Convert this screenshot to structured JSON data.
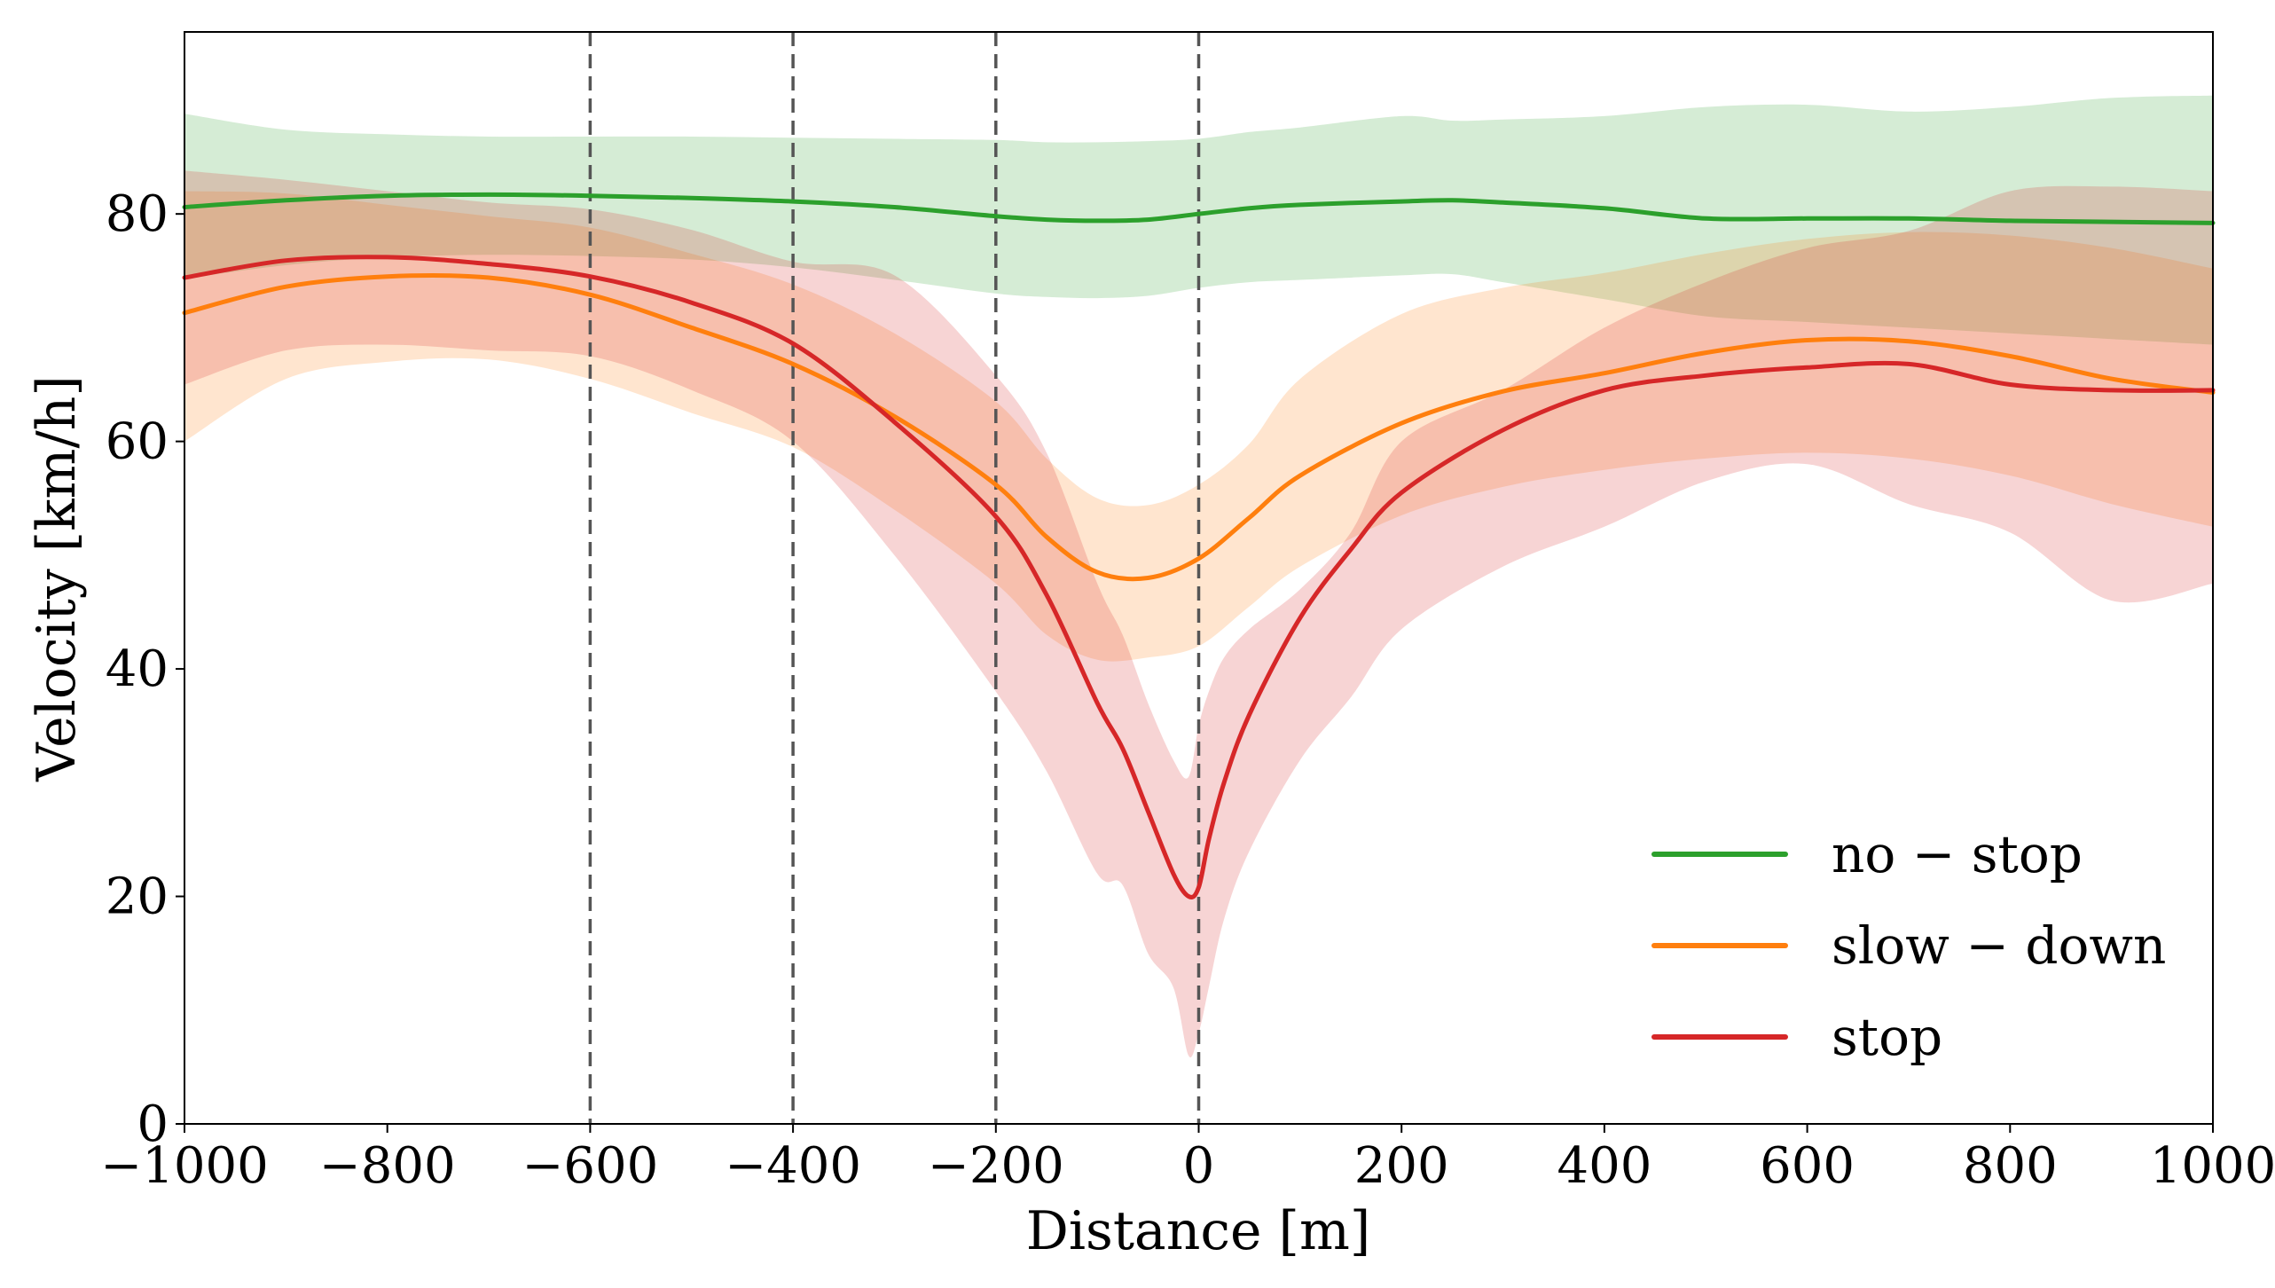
{
  "chart_data": {
    "type": "line",
    "title": "",
    "xlabel": "Distance [m]",
    "ylabel": "Velocity [km/h]",
    "xlim": [
      -1000,
      1000
    ],
    "ylim": [
      0,
      96
    ],
    "xticks": [
      -1000,
      -800,
      -600,
      -400,
      -200,
      0,
      200,
      400,
      600,
      800,
      1000
    ],
    "xtick_labels": [
      "−1000",
      "−800",
      "−600",
      "−400",
      "−200",
      "0",
      "200",
      "400",
      "600",
      "800",
      "1000"
    ],
    "yticks": [
      0,
      20,
      40,
      60,
      80
    ],
    "ytick_labels": [
      "0",
      "20",
      "40",
      "60",
      "80"
    ],
    "grid": false,
    "vlines": [
      -600,
      -400,
      -200,
      0
    ],
    "legend_position": "lower-right",
    "series": [
      {
        "name": "no − stop",
        "color": "#2ca02c",
        "band_color": "#2ca02c",
        "x": [
          -1000,
          -900,
          -800,
          -700,
          -600,
          -500,
          -400,
          -300,
          -200,
          -150,
          -100,
          -50,
          0,
          50,
          100,
          200,
          250,
          300,
          400,
          500,
          600,
          700,
          800,
          900,
          1000
        ],
        "y": [
          80.6,
          81.2,
          81.6,
          81.7,
          81.6,
          81.4,
          81.1,
          80.6,
          79.8,
          79.5,
          79.4,
          79.5,
          80.0,
          80.5,
          80.8,
          81.1,
          81.2,
          81.0,
          80.5,
          79.6,
          79.6,
          79.6,
          79.4,
          79.3,
          79.2
        ],
        "lower": [
          74.3,
          75.5,
          76.2,
          76.4,
          76.3,
          76.0,
          75.3,
          74.2,
          73.0,
          72.7,
          72.6,
          72.8,
          73.5,
          74.0,
          74.2,
          74.6,
          74.7,
          74.0,
          72.5,
          71.0,
          70.5,
          70.0,
          69.5,
          69.0,
          68.5
        ],
        "upper": [
          88.8,
          87.4,
          87.0,
          86.8,
          86.8,
          86.8,
          86.7,
          86.6,
          86.5,
          86.3,
          86.3,
          86.4,
          86.6,
          87.2,
          87.6,
          88.6,
          88.2,
          88.3,
          88.6,
          89.4,
          89.6,
          89.0,
          89.4,
          90.2,
          90.4
        ]
      },
      {
        "name": "slow − down",
        "color": "#ff7f0e",
        "band_color": "#ff7f0e",
        "x": [
          -1000,
          -900,
          -800,
          -700,
          -600,
          -500,
          -400,
          -300,
          -200,
          -150,
          -100,
          -50,
          0,
          50,
          100,
          200,
          300,
          400,
          500,
          600,
          700,
          800,
          900,
          1000
        ],
        "y": [
          71.3,
          73.6,
          74.5,
          74.4,
          72.9,
          70.0,
          66.8,
          62.2,
          56.2,
          51.6,
          48.5,
          48.0,
          49.7,
          53.3,
          57.0,
          61.6,
          64.4,
          66.0,
          67.8,
          68.9,
          68.8,
          67.5,
          65.5,
          64.3
        ],
        "lower": [
          60.0,
          65.5,
          67.0,
          67.2,
          65.5,
          62.5,
          59.5,
          54.0,
          47.5,
          43.0,
          40.8,
          41.0,
          42.0,
          45.5,
          49.0,
          53.5,
          56.0,
          57.5,
          58.5,
          59.0,
          58.5,
          57.0,
          54.5,
          52.5
        ],
        "upper": [
          82.0,
          81.8,
          80.8,
          79.8,
          78.8,
          76.5,
          73.8,
          69.5,
          63.5,
          58.5,
          55.0,
          54.4,
          56.2,
          59.8,
          65.5,
          71.2,
          73.5,
          74.8,
          76.5,
          77.8,
          78.4,
          78.1,
          77.0,
          75.2
        ]
      },
      {
        "name": "stop",
        "color": "#d62728",
        "band_color": "#d62728",
        "x": [
          -1000,
          -900,
          -800,
          -700,
          -600,
          -500,
          -400,
          -300,
          -200,
          -150,
          -100,
          -75,
          -50,
          -25,
          -10,
          0,
          10,
          25,
          50,
          100,
          150,
          200,
          300,
          400,
          500,
          600,
          700,
          800,
          900,
          1000
        ],
        "y": [
          74.4,
          75.9,
          76.2,
          75.6,
          74.5,
          72.2,
          68.6,
          61.7,
          53.4,
          46.5,
          37.0,
          33.0,
          27.5,
          22.0,
          20.0,
          20.8,
          25.0,
          30.0,
          36.0,
          44.5,
          50.5,
          55.5,
          61.0,
          64.5,
          65.8,
          66.5,
          66.8,
          65.0,
          64.5,
          64.5
        ],
        "lower": [
          65.0,
          68.0,
          68.5,
          68.0,
          67.5,
          64.5,
          60.0,
          50.0,
          38.0,
          31.0,
          22.0,
          21.0,
          15.0,
          12.0,
          6.0,
          8.0,
          12.0,
          18.0,
          24.0,
          32.0,
          37.5,
          43.5,
          49.0,
          52.5,
          56.5,
          58.0,
          54.5,
          52.0,
          46.0,
          47.5
        ],
        "upper": [
          83.8,
          83.0,
          82.0,
          81.0,
          80.4,
          78.6,
          75.8,
          74.6,
          65.8,
          59.0,
          47.5,
          43.0,
          37.0,
          32.0,
          30.5,
          35.0,
          38.0,
          41.0,
          43.5,
          47.0,
          52.0,
          60.0,
          64.5,
          70.0,
          74.0,
          77.0,
          78.5,
          82.0,
          82.4,
          82.0
        ]
      }
    ]
  }
}
